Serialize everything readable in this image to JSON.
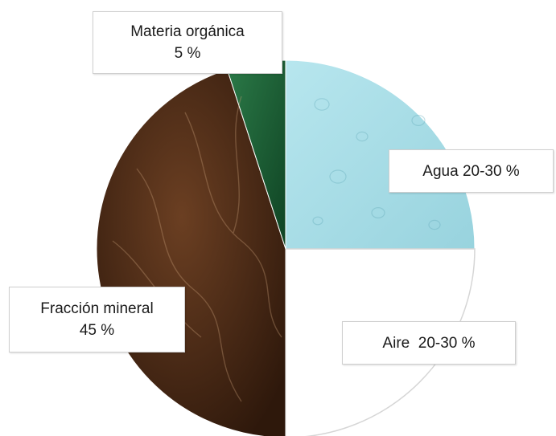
{
  "chart_data": {
    "type": "pie",
    "title": "",
    "slices": [
      {
        "key": "organica",
        "label": "Materia orgánica",
        "value_text": "5 %",
        "value": 5,
        "color": "#1d5c34"
      },
      {
        "key": "agua",
        "label": "Agua",
        "value_text": "20-30 %",
        "value": 25,
        "color": "#a9dde6"
      },
      {
        "key": "aire",
        "label": "Aire",
        "value_text": "20-30 %",
        "value": 25,
        "color": "#ffffff"
      },
      {
        "key": "mineral",
        "label": "Fracción mineral",
        "value_text": "45 %",
        "value": 45,
        "color": "#4a2a16"
      }
    ],
    "start_angle_deg": 0,
    "direction": "clockwise",
    "legend": "none"
  }
}
